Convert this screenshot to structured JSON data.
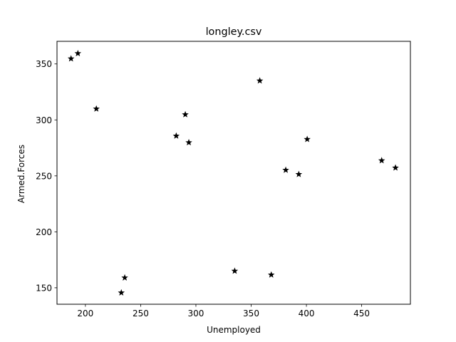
{
  "chart_data": {
    "type": "scatter",
    "title": "longley.csv",
    "xlabel": "Unemployed",
    "ylabel": "Armed.Forces",
    "xlim": [
      174.3,
      494.1
    ],
    "ylim": [
      135.3,
      370.2
    ],
    "xticks": [
      200,
      250,
      300,
      350,
      400,
      450
    ],
    "yticks": [
      150,
      200,
      250,
      300,
      350
    ],
    "marker": "star",
    "marker_color": "#000000",
    "grid": false,
    "x": [
      235.6,
      232.5,
      368.2,
      335.1,
      209.9,
      193.2,
      187.0,
      357.8,
      290.4,
      282.2,
      293.6,
      468.1,
      381.3,
      393.1,
      480.6,
      400.7
    ],
    "y": [
      159.0,
      145.6,
      161.6,
      165.0,
      309.9,
      359.4,
      354.7,
      335.0,
      304.8,
      285.7,
      279.8,
      263.7,
      255.2,
      251.4,
      257.2,
      282.7
    ]
  }
}
